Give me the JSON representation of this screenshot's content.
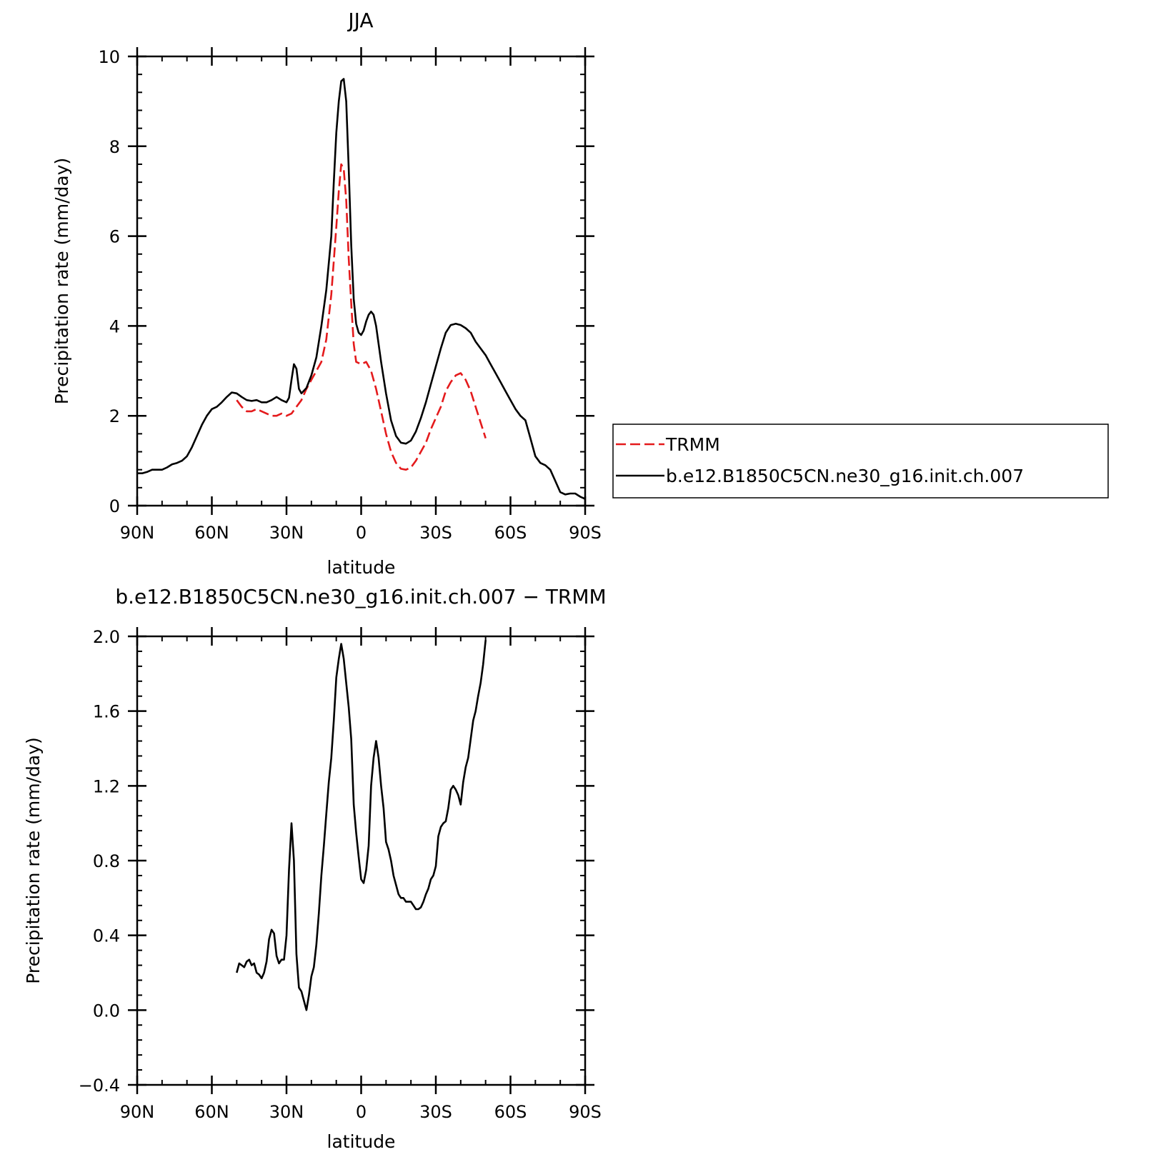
{
  "chart_data": [
    {
      "type": "line",
      "title": "JJA",
      "xlabel": "latitude",
      "ylabel": "Precipitation rate (mm/day)",
      "xlim": [
        90,
        -90
      ],
      "ylim": [
        0,
        10
      ],
      "x_ticks": [
        90,
        60,
        30,
        0,
        -30,
        -60,
        -90
      ],
      "x_tick_labels": [
        "90N",
        "60N",
        "30N",
        "0",
        "30S",
        "60S",
        "90S"
      ],
      "y_ticks": [
        0,
        2,
        4,
        6,
        8,
        10
      ],
      "y_tick_labels": [
        "0",
        "2",
        "4",
        "6",
        "8",
        "10"
      ],
      "legend_position": "right",
      "series": [
        {
          "name": "TRMM",
          "color": "#e41a1c",
          "style": "dashed",
          "points": [
            [
              50,
              2.35
            ],
            [
              48,
              2.2
            ],
            [
              46,
              2.1
            ],
            [
              44,
              2.1
            ],
            [
              42,
              2.15
            ],
            [
              40,
              2.1
            ],
            [
              38,
              2.05
            ],
            [
              36,
              2.0
            ],
            [
              34,
              2.0
            ],
            [
              32,
              2.05
            ],
            [
              30,
              2.0
            ],
            [
              28,
              2.05
            ],
            [
              26,
              2.2
            ],
            [
              24,
              2.35
            ],
            [
              22,
              2.6
            ],
            [
              20,
              2.8
            ],
            [
              18,
              3.0
            ],
            [
              16,
              3.2
            ],
            [
              14,
              3.7
            ],
            [
              12,
              4.7
            ],
            [
              10,
              6.2
            ],
            [
              9,
              7.0
            ],
            [
              8,
              7.6
            ],
            [
              7,
              7.5
            ],
            [
              6,
              6.8
            ],
            [
              5,
              5.5
            ],
            [
              4,
              4.5
            ],
            [
              3,
              3.6
            ],
            [
              2,
              3.2
            ],
            [
              0,
              3.15
            ],
            [
              -2,
              3.2
            ],
            [
              -4,
              3.0
            ],
            [
              -6,
              2.6
            ],
            [
              -8,
              2.1
            ],
            [
              -10,
              1.6
            ],
            [
              -12,
              1.2
            ],
            [
              -14,
              0.95
            ],
            [
              -16,
              0.82
            ],
            [
              -18,
              0.8
            ],
            [
              -20,
              0.85
            ],
            [
              -22,
              1.0
            ],
            [
              -24,
              1.2
            ],
            [
              -26,
              1.4
            ],
            [
              -28,
              1.7
            ],
            [
              -30,
              1.95
            ],
            [
              -32,
              2.2
            ],
            [
              -34,
              2.55
            ],
            [
              -36,
              2.75
            ],
            [
              -38,
              2.9
            ],
            [
              -40,
              2.95
            ],
            [
              -42,
              2.8
            ],
            [
              -44,
              2.55
            ],
            [
              -46,
              2.2
            ],
            [
              -48,
              1.85
            ],
            [
              -50,
              1.5
            ]
          ]
        },
        {
          "name": "b.e12.B1850C5CN.ne30_g16.init.ch.007",
          "color": "#000000",
          "style": "solid",
          "points": [
            [
              90,
              0.72
            ],
            [
              88,
              0.72
            ],
            [
              86,
              0.75
            ],
            [
              84,
              0.8
            ],
            [
              82,
              0.8
            ],
            [
              80,
              0.8
            ],
            [
              78,
              0.85
            ],
            [
              76,
              0.92
            ],
            [
              74,
              0.95
            ],
            [
              72,
              1.0
            ],
            [
              70,
              1.1
            ],
            [
              68,
              1.3
            ],
            [
              66,
              1.55
            ],
            [
              64,
              1.8
            ],
            [
              62,
              2.0
            ],
            [
              60,
              2.15
            ],
            [
              58,
              2.2
            ],
            [
              56,
              2.3
            ],
            [
              54,
              2.42
            ],
            [
              52,
              2.52
            ],
            [
              50,
              2.5
            ],
            [
              48,
              2.42
            ],
            [
              46,
              2.35
            ],
            [
              44,
              2.33
            ],
            [
              42,
              2.35
            ],
            [
              40,
              2.3
            ],
            [
              38,
              2.3
            ],
            [
              36,
              2.35
            ],
            [
              34,
              2.42
            ],
            [
              32,
              2.35
            ],
            [
              30,
              2.3
            ],
            [
              29,
              2.4
            ],
            [
              28,
              2.8
            ],
            [
              27,
              3.15
            ],
            [
              26,
              3.05
            ],
            [
              25,
              2.6
            ],
            [
              24,
              2.5
            ],
            [
              22,
              2.62
            ],
            [
              20,
              2.9
            ],
            [
              18,
              3.3
            ],
            [
              16,
              4.0
            ],
            [
              14,
              4.8
            ],
            [
              12,
              6.0
            ],
            [
              11,
              7.2
            ],
            [
              10,
              8.3
            ],
            [
              9,
              9.0
            ],
            [
              8,
              9.45
            ],
            [
              7,
              9.5
            ],
            [
              6,
              9.0
            ],
            [
              5,
              7.5
            ],
            [
              4,
              5.8
            ],
            [
              3,
              4.6
            ],
            [
              2,
              4.05
            ],
            [
              1,
              3.85
            ],
            [
              0,
              3.8
            ],
            [
              -1,
              3.9
            ],
            [
              -2,
              4.1
            ],
            [
              -3,
              4.25
            ],
            [
              -4,
              4.32
            ],
            [
              -5,
              4.25
            ],
            [
              -6,
              4.0
            ],
            [
              -8,
              3.2
            ],
            [
              -10,
              2.5
            ],
            [
              -12,
              1.9
            ],
            [
              -14,
              1.55
            ],
            [
              -16,
              1.4
            ],
            [
              -18,
              1.38
            ],
            [
              -20,
              1.45
            ],
            [
              -22,
              1.65
            ],
            [
              -24,
              1.95
            ],
            [
              -26,
              2.3
            ],
            [
              -28,
              2.7
            ],
            [
              -30,
              3.1
            ],
            [
              -32,
              3.5
            ],
            [
              -34,
              3.85
            ],
            [
              -36,
              4.02
            ],
            [
              -38,
              4.05
            ],
            [
              -40,
              4.02
            ],
            [
              -42,
              3.95
            ],
            [
              -44,
              3.85
            ],
            [
              -46,
              3.65
            ],
            [
              -48,
              3.5
            ],
            [
              -50,
              3.35
            ],
            [
              -52,
              3.15
            ],
            [
              -54,
              2.95
            ],
            [
              -56,
              2.75
            ],
            [
              -58,
              2.55
            ],
            [
              -60,
              2.35
            ],
            [
              -62,
              2.15
            ],
            [
              -64,
              2.0
            ],
            [
              -66,
              1.9
            ],
            [
              -68,
              1.5
            ],
            [
              -70,
              1.1
            ],
            [
              -72,
              0.95
            ],
            [
              -74,
              0.9
            ],
            [
              -76,
              0.8
            ],
            [
              -78,
              0.55
            ],
            [
              -80,
              0.3
            ],
            [
              -82,
              0.25
            ],
            [
              -84,
              0.27
            ],
            [
              -86,
              0.27
            ],
            [
              -88,
              0.2
            ],
            [
              -90,
              0.15
            ]
          ]
        }
      ]
    },
    {
      "type": "line",
      "title": "b.e12.B1850C5CN.ne30_g16.init.ch.007 − TRMM",
      "xlabel": "latitude",
      "ylabel": "Precipitation rate (mm/day)",
      "xlim": [
        90,
        -90
      ],
      "ylim": [
        -0.4,
        2.0
      ],
      "x_ticks": [
        90,
        60,
        30,
        0,
        -30,
        -60,
        -90
      ],
      "x_tick_labels": [
        "90N",
        "60N",
        "30N",
        "0",
        "30S",
        "60S",
        "90S"
      ],
      "y_ticks": [
        -0.4,
        0.0,
        0.4,
        0.8,
        1.2,
        1.6,
        2.0
      ],
      "y_tick_labels": [
        "−0.4",
        "0.0",
        "0.4",
        "0.8",
        "1.2",
        "1.6",
        "2.0"
      ],
      "series": [
        {
          "color": "#000000",
          "style": "solid",
          "points": [
            [
              50,
              0.2
            ],
            [
              49,
              0.25
            ],
            [
              48,
              0.24
            ],
            [
              47,
              0.23
            ],
            [
              46,
              0.26
            ],
            [
              45,
              0.27
            ],
            [
              44,
              0.24
            ],
            [
              43,
              0.25
            ],
            [
              42,
              0.2
            ],
            [
              41,
              0.19
            ],
            [
              40,
              0.17
            ],
            [
              39,
              0.2
            ],
            [
              38,
              0.26
            ],
            [
              37,
              0.38
            ],
            [
              36,
              0.43
            ],
            [
              35,
              0.41
            ],
            [
              34,
              0.29
            ],
            [
              33,
              0.25
            ],
            [
              32,
              0.27
            ],
            [
              31,
              0.27
            ],
            [
              30,
              0.4
            ],
            [
              29,
              0.75
            ],
            [
              28,
              1.0
            ],
            [
              27,
              0.8
            ],
            [
              26,
              0.3
            ],
            [
              25,
              0.12
            ],
            [
              24,
              0.1
            ],
            [
              23,
              0.05
            ],
            [
              22,
              0.0
            ],
            [
              21,
              0.08
            ],
            [
              20,
              0.18
            ],
            [
              19,
              0.23
            ],
            [
              18,
              0.35
            ],
            [
              17,
              0.52
            ],
            [
              16,
              0.72
            ],
            [
              15,
              0.88
            ],
            [
              14,
              1.05
            ],
            [
              13,
              1.22
            ],
            [
              12,
              1.35
            ],
            [
              11,
              1.55
            ],
            [
              10,
              1.78
            ],
            [
              9,
              1.88
            ],
            [
              8,
              1.96
            ],
            [
              7,
              1.88
            ],
            [
              6,
              1.75
            ],
            [
              5,
              1.62
            ],
            [
              4,
              1.45
            ],
            [
              3,
              1.1
            ],
            [
              2,
              0.95
            ],
            [
              1,
              0.82
            ],
            [
              0,
              0.7
            ],
            [
              -1,
              0.68
            ],
            [
              -2,
              0.75
            ],
            [
              -3,
              0.88
            ],
            [
              -4,
              1.2
            ],
            [
              -5,
              1.35
            ],
            [
              -6,
              1.44
            ],
            [
              -7,
              1.35
            ],
            [
              -8,
              1.2
            ],
            [
              -9,
              1.08
            ],
            [
              -10,
              0.9
            ],
            [
              -11,
              0.86
            ],
            [
              -12,
              0.8
            ],
            [
              -13,
              0.72
            ],
            [
              -14,
              0.67
            ],
            [
              -15,
              0.62
            ],
            [
              -16,
              0.6
            ],
            [
              -17,
              0.6
            ],
            [
              -18,
              0.58
            ],
            [
              -19,
              0.58
            ],
            [
              -20,
              0.58
            ],
            [
              -21,
              0.56
            ],
            [
              -22,
              0.54
            ],
            [
              -23,
              0.54
            ],
            [
              -24,
              0.55
            ],
            [
              -25,
              0.58
            ],
            [
              -26,
              0.62
            ],
            [
              -27,
              0.65
            ],
            [
              -28,
              0.7
            ],
            [
              -29,
              0.72
            ],
            [
              -30,
              0.77
            ],
            [
              -31,
              0.93
            ],
            [
              -32,
              0.98
            ],
            [
              -33,
              1.0
            ],
            [
              -34,
              1.01
            ],
            [
              -35,
              1.08
            ],
            [
              -36,
              1.18
            ],
            [
              -37,
              1.2
            ],
            [
              -38,
              1.18
            ],
            [
              -39,
              1.15
            ],
            [
              -40,
              1.1
            ],
            [
              -41,
              1.22
            ],
            [
              -42,
              1.3
            ],
            [
              -43,
              1.35
            ],
            [
              -44,
              1.45
            ],
            [
              -45,
              1.55
            ],
            [
              -46,
              1.6
            ],
            [
              -47,
              1.68
            ],
            [
              -48,
              1.75
            ],
            [
              -49,
              1.85
            ],
            [
              -50,
              1.98
            ]
          ]
        }
      ]
    }
  ]
}
